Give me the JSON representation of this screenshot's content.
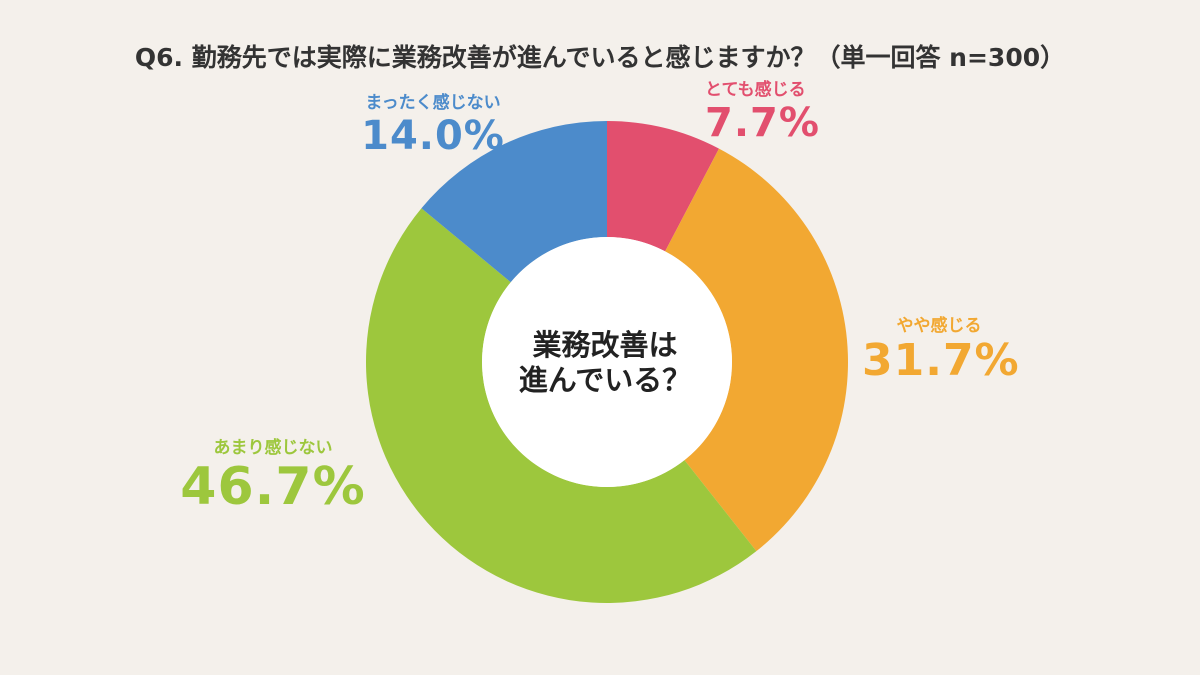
{
  "title": "Q6. 勤務先では実際に業務改善が進んでいると感じますか？（単一回答 n=300）",
  "center_label_line1": "業務改善は",
  "center_label_line2": "進んでいる？",
  "colors": {
    "background": "#f4f0eb",
    "とても感じる": "#e24f6e",
    "やや感じる": "#f2a832",
    "あまり感じない": "#9dc73d",
    "まったく感じない": "#4c8bcb"
  },
  "chart_data": {
    "type": "pie",
    "title": "Q6. 勤務先では実際に業務改善が進んでいると感じますか？（単一回答 n=300）",
    "donut": true,
    "start": "top, clockwise",
    "categories": [
      "とても感じる",
      "やや感じる",
      "あまり感じない",
      "まったく感じない"
    ],
    "values": [
      7.7,
      31.7,
      46.7,
      14.0
    ],
    "value_labels": [
      "7.7%",
      "31.7%",
      "46.7%",
      "14.0%"
    ],
    "unit": "%"
  }
}
